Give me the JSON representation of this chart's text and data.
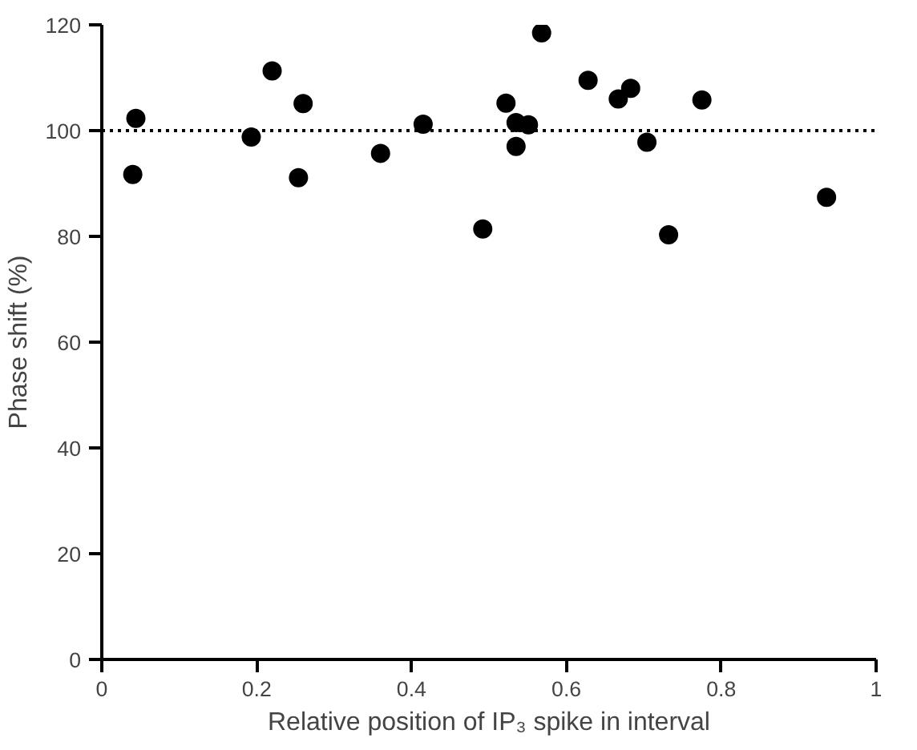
{
  "chart_data": {
    "type": "scatter",
    "xlabel": "Relative position of IP₃ spike in interval",
    "ylabel": "Phase shift (%)",
    "x": [
      0.044,
      0.04,
      0.193,
      0.22,
      0.26,
      0.254,
      0.36,
      0.415,
      0.492,
      0.568,
      0.522,
      0.535,
      0.551,
      0.535,
      0.628,
      0.667,
      0.683,
      0.704,
      0.732,
      0.775,
      0.936
    ],
    "values": [
      102.3,
      91.7,
      98.8,
      111.3,
      105.1,
      91.1,
      95.7,
      101.2,
      81.4,
      118.5,
      105.2,
      101.5,
      101.1,
      97.0,
      109.5,
      106,
      108,
      97.8,
      80.3,
      105.8,
      87.4
    ],
    "color": "#000000",
    "marker": "circle",
    "xlim": [
      0,
      1
    ],
    "ylim": [
      0,
      120
    ],
    "xticks": [
      0,
      0.2,
      0.4,
      0.6,
      0.8,
      1
    ],
    "yticks": [
      0,
      20,
      40,
      60,
      80,
      100,
      120
    ],
    "ref_lines": [
      {
        "axis": "y",
        "value": 100,
        "line_style": "dotted",
        "color": "#000000"
      }
    ],
    "grid": false
  }
}
